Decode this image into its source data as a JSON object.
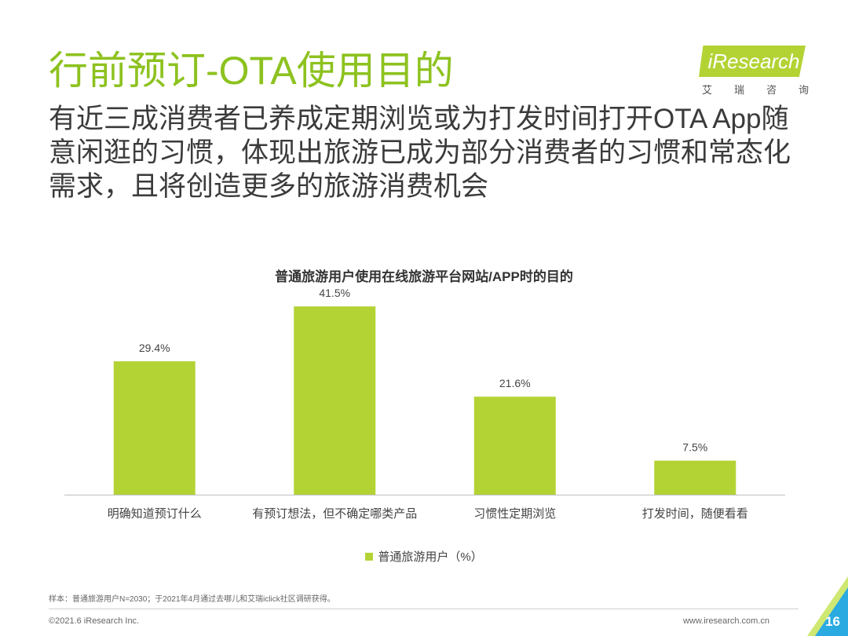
{
  "slide": {
    "title": "行前预订-OTA使用目的",
    "headline": "有近三成消费者已养成定期浏览或为打发时间打开OTA App随意闲逛的习惯，体现出旅游已成为部分消费者的习惯和常态化需求，且将创造更多的旅游消费机会"
  },
  "logo": {
    "text": "iResearch",
    "sub_chars": [
      "艾",
      "瑞",
      "咨",
      "询"
    ]
  },
  "chart_data": {
    "type": "bar",
    "title": "普通旅游用户使用在线旅游平台网站/APP时的目的",
    "categories": [
      "明确知道预订什么",
      "有预订想法，但不确定哪类产品",
      "习惯性定期浏览",
      "打发时间，随便看看"
    ],
    "series": [
      {
        "name": "普通旅游用户（%）",
        "values": [
          29.4,
          41.5,
          21.6,
          7.5
        ]
      }
    ],
    "data_labels": [
      "29.4%",
      "41.5%",
      "21.6%",
      "7.5%"
    ],
    "ylim": [
      0,
      45
    ],
    "grid": false,
    "legend_position": "bottom-center",
    "bar_color": "#b3d335"
  },
  "footer": {
    "note": "样本：普通旅游用户N=2030；于2021年4月通过去哪儿和艾瑞iclick社区调研获得。",
    "copyright": "©2021.6 iResearch Inc.",
    "website": "www.iresearch.com.cn",
    "page_number": "16"
  },
  "colors": {
    "accent": "#8dc21f",
    "bar": "#b3d335",
    "corner_blue": "#29abe2"
  }
}
